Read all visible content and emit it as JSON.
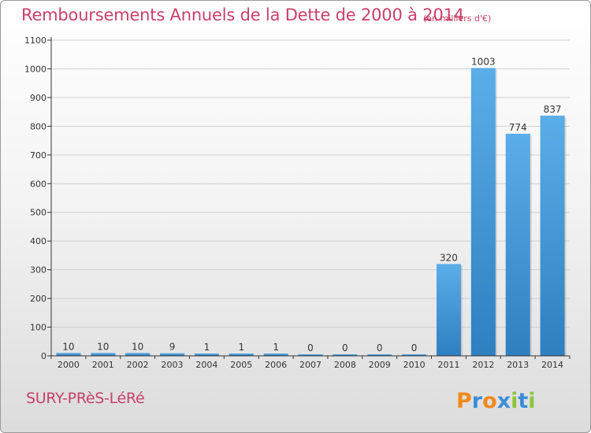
{
  "header": {
    "title": "Remboursements Annuels de la Dette de 2000 à 2014",
    "unit": "(en milliers d'€)"
  },
  "footer": {
    "commune": "SURY-PRèS-LéRé",
    "logo_text": "Proxiti"
  },
  "colors": {
    "title": "#c8406a",
    "bar_light": "#5aaee8",
    "bar_dark": "#2e7fc0",
    "axis": "#333333",
    "grid": "#cccccc"
  },
  "chart_data": {
    "type": "bar",
    "title": "Remboursements Annuels de la Dette de 2000 à 2014",
    "subtitle": "(en milliers d'€)",
    "xlabel": "",
    "ylabel": "",
    "categories": [
      "2000",
      "2001",
      "2002",
      "2003",
      "2004",
      "2005",
      "2006",
      "2007",
      "2008",
      "2009",
      "2010",
      "2011",
      "2012",
      "2013",
      "2014"
    ],
    "values": [
      10,
      10,
      10,
      9,
      1,
      1,
      1,
      0,
      0,
      0,
      0,
      320,
      1003,
      774,
      837
    ],
    "ylim": [
      0,
      1100
    ],
    "yticks": [
      0,
      100,
      200,
      300,
      400,
      500,
      600,
      700,
      800,
      900,
      1000,
      1100
    ],
    "grid": true,
    "legend": "none",
    "data_labels": true
  }
}
